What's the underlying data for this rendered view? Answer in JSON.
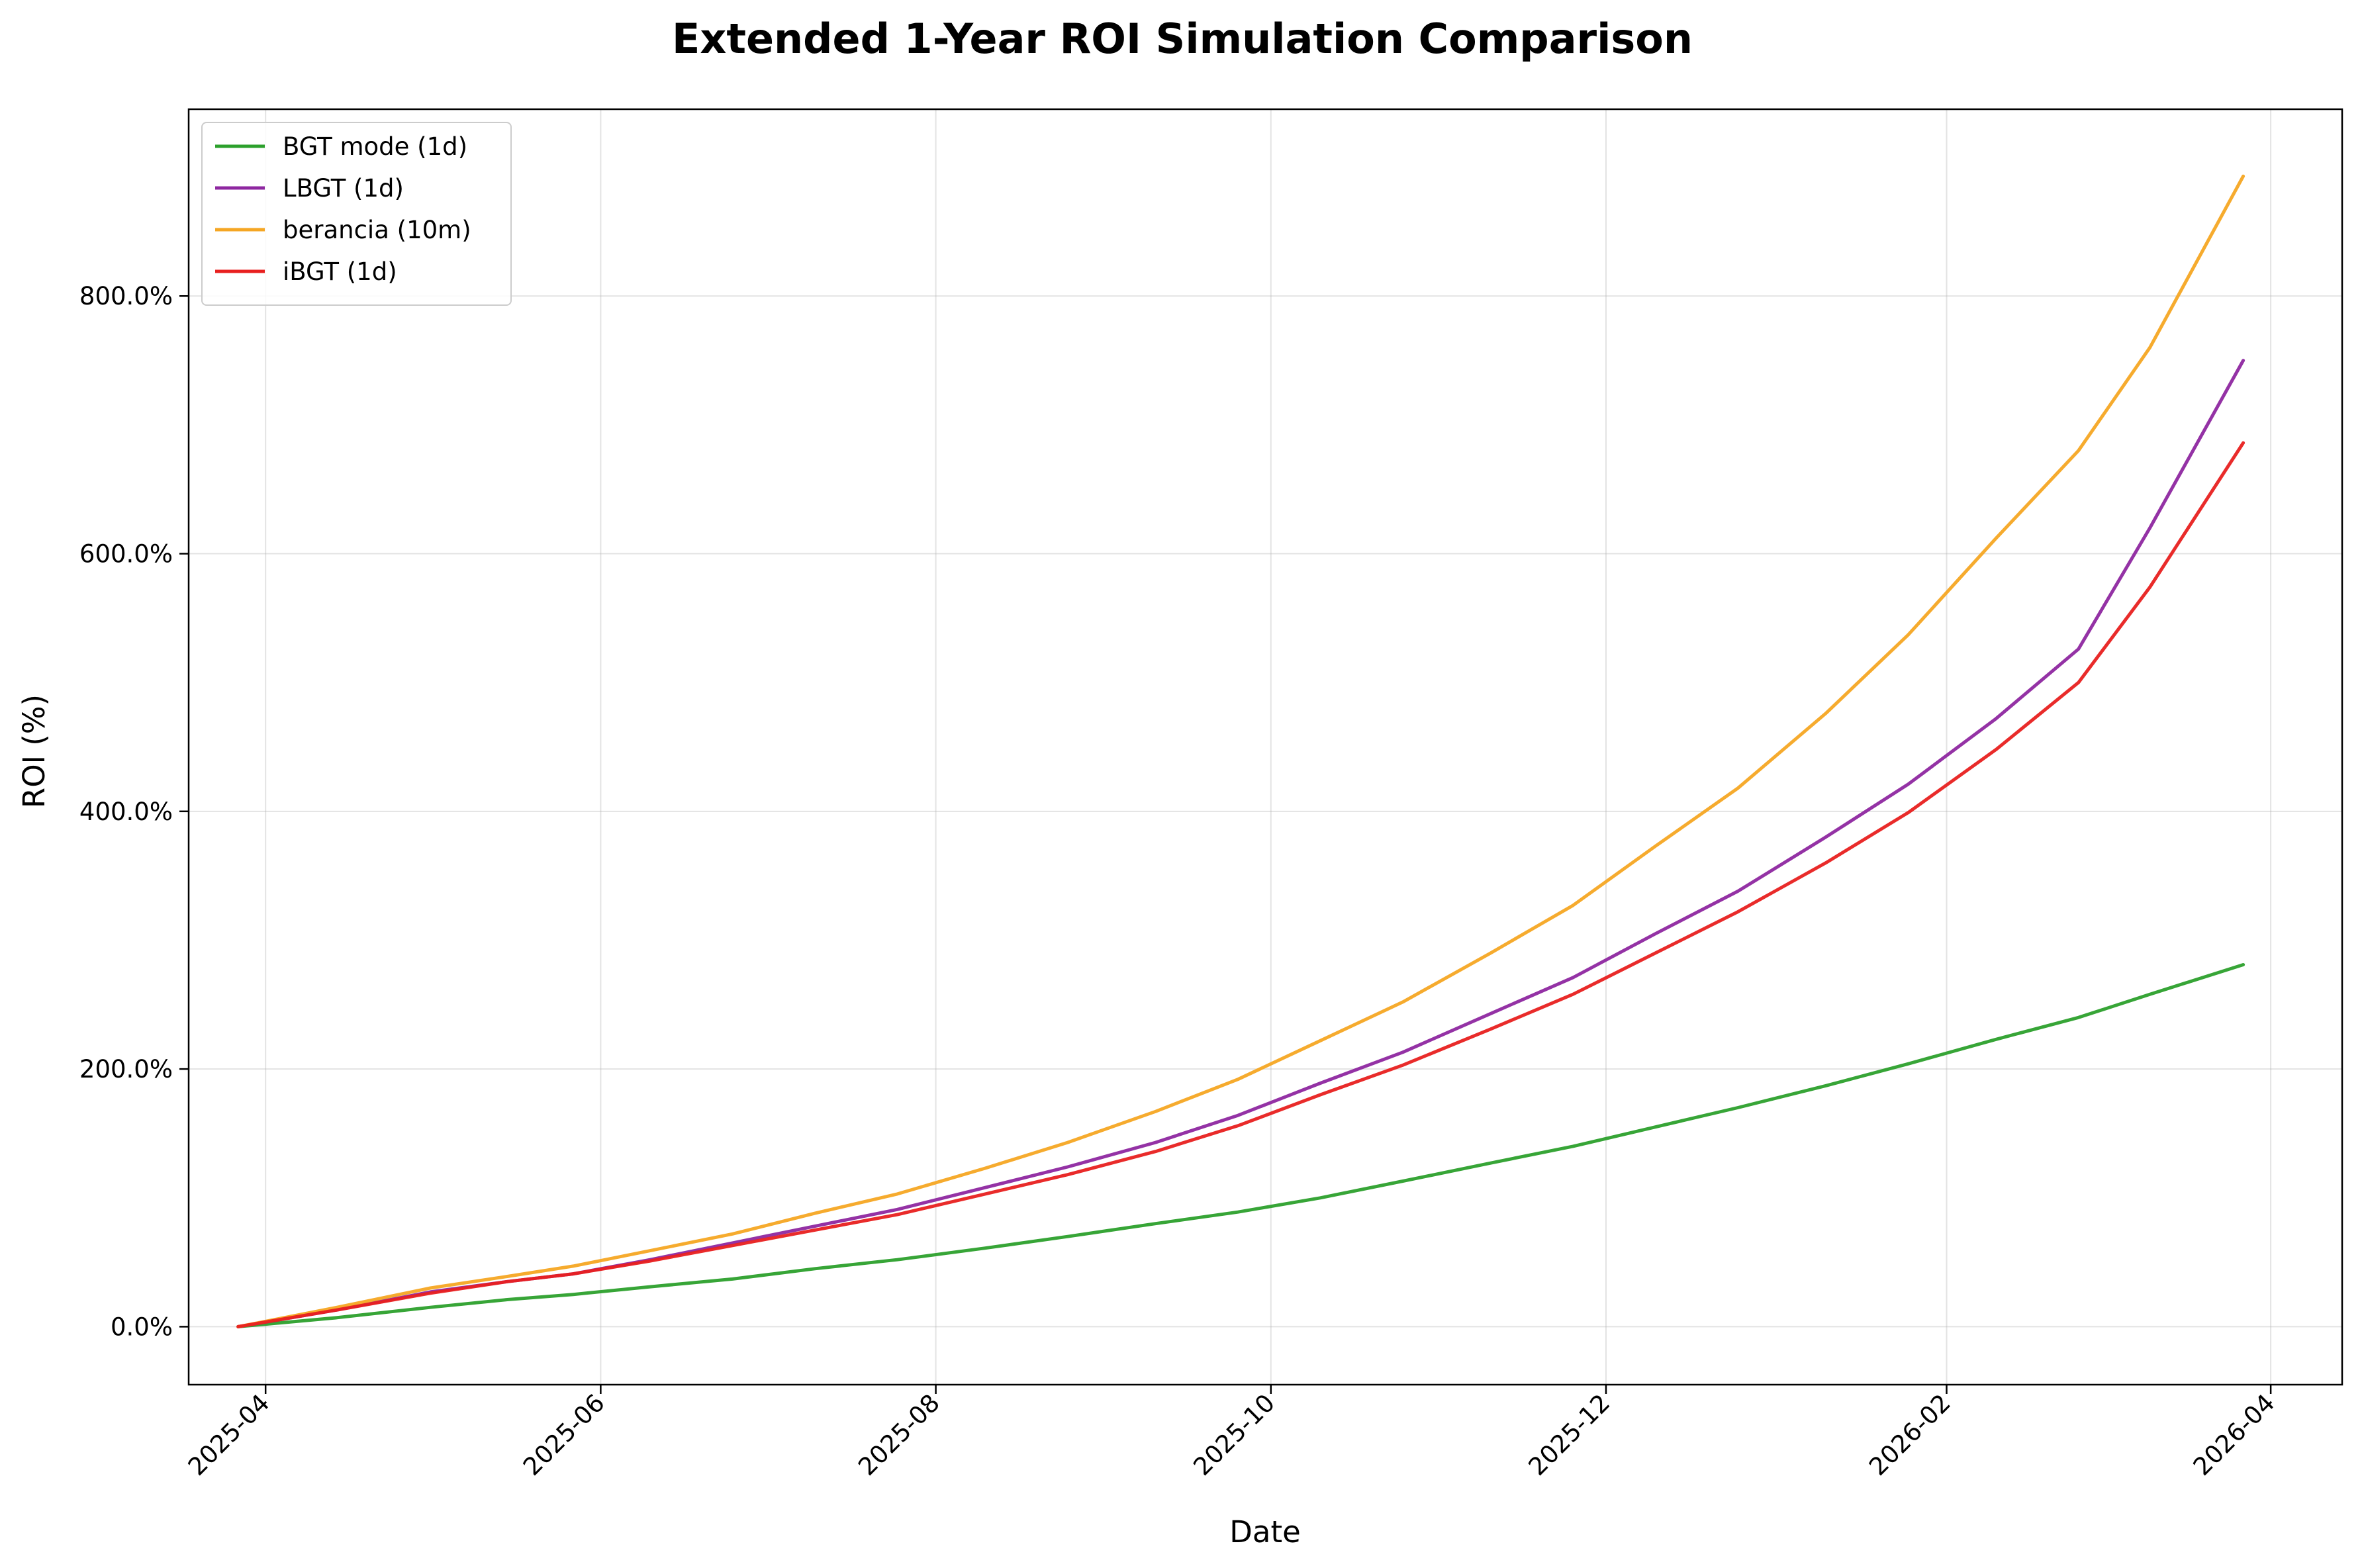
{
  "chart_data": {
    "type": "line",
    "title": "Extended 1-Year ROI Simulation Comparison",
    "xlabel": "Date",
    "ylabel": "ROI (%)",
    "xlim": [
      "2025-03-18",
      "2026-04-14"
    ],
    "ylim": [
      -45,
      945
    ],
    "x_ticks": [
      "2025-04",
      "2025-06",
      "2025-08",
      "2025-10",
      "2025-12",
      "2026-02",
      "2026-04"
    ],
    "y_ticks": [
      "0.0%",
      "200.0%",
      "400.0%",
      "600.0%",
      "800.0%"
    ],
    "grid": true,
    "legend_position": "upper-left",
    "colors": {
      "BGT mode (1d)": "#2ca02c",
      "LBGT (1d)": "#8e27a0",
      "berancia (10m)": "#f5a623",
      "iBGT (1d)": "#e8201f"
    },
    "x": [
      "2025-03-27",
      "2025-04-14",
      "2025-05-01",
      "2025-05-15",
      "2025-05-27",
      "2025-06-10",
      "2025-06-25",
      "2025-07-10",
      "2025-07-25",
      "2025-08-10",
      "2025-08-25",
      "2025-09-10",
      "2025-09-25",
      "2025-10-10",
      "2025-10-25",
      "2025-11-10",
      "2025-11-25",
      "2025-12-10",
      "2025-12-25",
      "2026-01-10",
      "2026-01-25",
      "2026-02-10",
      "2026-02-25",
      "2026-03-10",
      "2026-03-27"
    ],
    "series": [
      {
        "name": "BGT mode (1d)",
        "values": [
          0,
          7,
          15,
          21,
          25,
          31,
          37,
          45,
          52,
          61,
          70,
          80,
          89,
          100,
          113,
          127,
          140,
          155,
          170,
          187,
          204,
          223,
          240,
          258,
          281
        ]
      },
      {
        "name": "LBGT (1d)",
        "values": [
          0,
          13,
          27,
          35,
          41,
          52,
          65,
          78,
          91,
          108,
          124,
          143,
          164,
          189,
          213,
          243,
          271,
          305,
          338,
          380,
          421,
          472,
          526,
          620,
          750
        ]
      },
      {
        "name": "berancia (10m)",
        "values": [
          0,
          15,
          30,
          39,
          47,
          59,
          72,
          88,
          103,
          123,
          143,
          167,
          192,
          222,
          252,
          290,
          327,
          373,
          418,
          476,
          537,
          612,
          680,
          760,
          893
        ]
      },
      {
        "name": "iBGT (1d)",
        "values": [
          0,
          13,
          26,
          35,
          41,
          51,
          63,
          75,
          87,
          103,
          118,
          136,
          156,
          180,
          203,
          231,
          258,
          290,
          322,
          360,
          399,
          448,
          500,
          574,
          686
        ]
      }
    ]
  }
}
